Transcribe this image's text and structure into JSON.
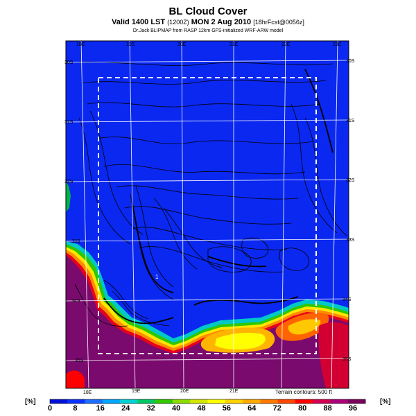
{
  "title": "BL Cloud Cover",
  "subtitle_main": "Valid 1400 LST",
  "subtitle_code": "(1200Z)",
  "subtitle_date": "MON 2 Aug 2010",
  "subtitle_fcst": "[18hrFcst@0056z]",
  "credit": "Dr.Jack BLIPMAP from RASP 12km GFS-initialized WRF-ARW model",
  "terrain_note": "Terrain contours: 500 ft",
  "units_label": "[%]",
  "map_marker": "1",
  "longitude_labels_top": [
    "18E",
    "19E",
    "20E",
    "21E",
    "22E",
    "23E"
  ],
  "longitude_labels_bottom": [
    "18E",
    "19E",
    "20E",
    "21E"
  ],
  "latitude_labels_right": [
    "30S",
    "31S",
    "32S",
    "33S",
    "34S",
    "35S"
  ],
  "latitude_labels_left": [
    "30S",
    "31S",
    "32S",
    "33S",
    "34S",
    "35S"
  ],
  "colorbar": {
    "ticks": [
      "0",
      "8",
      "16",
      "24",
      "32",
      "40",
      "48",
      "56",
      "64",
      "72",
      "80",
      "88",
      "96"
    ],
    "colors": [
      "#0010d8",
      "#0a32ff",
      "#1e6eff",
      "#00a8ff",
      "#00d2d2",
      "#00c864",
      "#32c800",
      "#8cdc00",
      "#d2e600",
      "#ffff00",
      "#ffd200",
      "#ffaa00",
      "#ff7800",
      "#ff4600",
      "#ff0000",
      "#d20050",
      "#aa0078",
      "#78005a"
    ]
  },
  "colors": {
    "ocean": "#0a28f0",
    "land_high": "#7a0a6e",
    "grid": "#ffffff",
    "contour": "#000000",
    "border": "#ffffff"
  }
}
